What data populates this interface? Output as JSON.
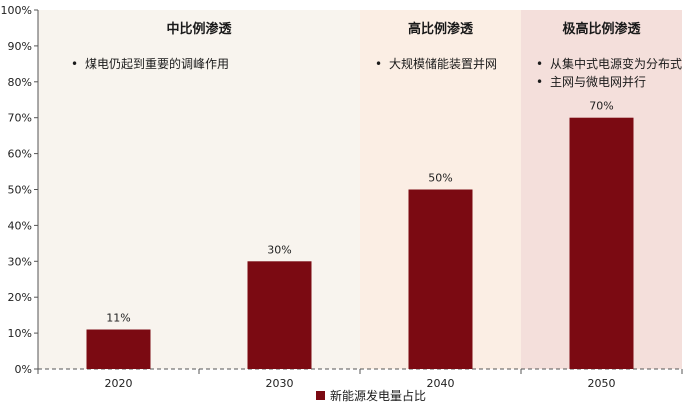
{
  "chart_data": {
    "type": "bar",
    "categories": [
      "2020",
      "2030",
      "2040",
      "2050"
    ],
    "series": [
      {
        "name": "新能源发电量占比",
        "values": [
          11,
          30,
          50,
          70
        ],
        "color": "#7b0a12"
      }
    ],
    "data_labels": [
      "11%",
      "30%",
      "50%",
      "70%"
    ],
    "ylim": [
      0,
      100
    ],
    "y_ticks": [
      0,
      10,
      20,
      30,
      40,
      50,
      60,
      70,
      80,
      90,
      100
    ],
    "y_tick_labels": [
      "0%",
      "10%",
      "20%",
      "30%",
      "40%",
      "50%",
      "60%",
      "70%",
      "80%",
      "90%",
      "100%"
    ],
    "grid": false,
    "legend_position": "bottom",
    "phases": [
      {
        "title": "中比例渗透",
        "bullets": [
          "煤电仍起到重要的调峰作用"
        ],
        "color": "#f8f4ee"
      },
      {
        "title": "高比例渗透",
        "bullets": [
          "大规模储能装置并网"
        ],
        "color": "#fbeee4"
      },
      {
        "title": "极高比例渗透",
        "bullets": [
          "从集中式电源变为分布式",
          "主网与微电网并行"
        ],
        "color": "#f4dfdb"
      }
    ]
  }
}
